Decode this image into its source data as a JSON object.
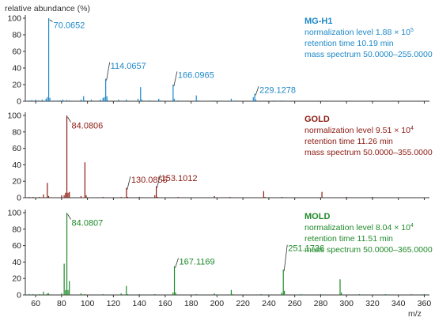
{
  "y_axis_title": "relative abundance (%)",
  "x_axis_unit": "m/z",
  "chart_data": [
    {
      "type": "bar",
      "name": "MG-H1",
      "color": "#1e88c8",
      "info": {
        "norm_prefix": "normalization level 1.88 × 10",
        "norm_exp": "5",
        "retention": "retention time 10.19 min",
        "mass_range": "mass spectrum 50.0000–255.0000"
      },
      "x_ticks": [
        60,
        80,
        100,
        120,
        140,
        160,
        180,
        200,
        220,
        240,
        260,
        280,
        300,
        320,
        340,
        360
      ],
      "y_ticks": [
        0,
        20,
        40,
        60,
        80,
        100
      ],
      "xlim": [
        52,
        364
      ],
      "ylim": [
        0,
        100
      ],
      "peaks": [
        {
          "x": 55.0,
          "y": 1
        },
        {
          "x": 57.0,
          "y": 1.5
        },
        {
          "x": 60.0,
          "y": 2
        },
        {
          "x": 62.0,
          "y": 1
        },
        {
          "x": 65.0,
          "y": 2
        },
        {
          "x": 68.0,
          "y": 3
        },
        {
          "x": 69.0,
          "y": 5
        },
        {
          "x": 70.0652,
          "y": 100
        },
        {
          "x": 71.0,
          "y": 4
        },
        {
          "x": 74.0,
          "y": 1
        },
        {
          "x": 77.0,
          "y": 1
        },
        {
          "x": 79.0,
          "y": 1
        },
        {
          "x": 81.0,
          "y": 2
        },
        {
          "x": 84.0,
          "y": 1.5
        },
        {
          "x": 86.0,
          "y": 1
        },
        {
          "x": 95.0,
          "y": 2
        },
        {
          "x": 97.0,
          "y": 6
        },
        {
          "x": 98.0,
          "y": 1
        },
        {
          "x": 103.0,
          "y": 2
        },
        {
          "x": 110.0,
          "y": 2
        },
        {
          "x": 112.0,
          "y": 4
        },
        {
          "x": 113.0,
          "y": 5
        },
        {
          "x": 114.0657,
          "y": 27
        },
        {
          "x": 115.0,
          "y": 6
        },
        {
          "x": 116.0,
          "y": 1
        },
        {
          "x": 124.0,
          "y": 2
        },
        {
          "x": 130.0,
          "y": 2
        },
        {
          "x": 139.0,
          "y": 3
        },
        {
          "x": 141.0,
          "y": 17
        },
        {
          "x": 142.0,
          "y": 2
        },
        {
          "x": 148.0,
          "y": 1
        },
        {
          "x": 155.0,
          "y": 3
        },
        {
          "x": 156.0,
          "y": 1
        },
        {
          "x": 166.0965,
          "y": 20
        },
        {
          "x": 167.0,
          "y": 3
        },
        {
          "x": 170.0,
          "y": 1
        },
        {
          "x": 184.0,
          "y": 7
        },
        {
          "x": 185.0,
          "y": 1
        },
        {
          "x": 198.0,
          "y": 1
        },
        {
          "x": 211.0,
          "y": 3
        },
        {
          "x": 215.0,
          "y": 1
        },
        {
          "x": 228.0,
          "y": 5
        },
        {
          "x": 229.1278,
          "y": 9
        },
        {
          "x": 230.0,
          "y": 2
        },
        {
          "x": 244.0,
          "y": 1
        },
        {
          "x": 250.0,
          "y": 1
        }
      ],
      "labels": [
        {
          "x": 70.0652,
          "text": "70.0652",
          "label_y": 92
        },
        {
          "x": 114.0657,
          "text": "114.0657",
          "label_y": 43
        },
        {
          "x": 166.0965,
          "text": "166.0965",
          "label_y": 32
        },
        {
          "x": 229.1278,
          "text": "229.1278",
          "label_y": 14
        }
      ]
    },
    {
      "type": "bar",
      "name": "GOLD",
      "color": "#8b1a12",
      "info": {
        "norm_prefix": "normalization level 9.51 × 10",
        "norm_exp": "4",
        "retention": "retention time 11.26 min",
        "mass_range": "mass spectrum 50.0000–355.0000"
      },
      "x_ticks": [
        60,
        80,
        100,
        120,
        140,
        160,
        180,
        200,
        220,
        240,
        260,
        280,
        300,
        320,
        340,
        360
      ],
      "y_ticks": [
        0,
        20,
        40,
        60,
        80,
        100
      ],
      "xlim": [
        52,
        364
      ],
      "ylim": [
        0,
        100
      ],
      "peaks": [
        {
          "x": 55.0,
          "y": 1
        },
        {
          "x": 58.0,
          "y": 1
        },
        {
          "x": 63.0,
          "y": 1
        },
        {
          "x": 66.0,
          "y": 4
        },
        {
          "x": 69.0,
          "y": 18
        },
        {
          "x": 70.0,
          "y": 2
        },
        {
          "x": 80.0,
          "y": 3
        },
        {
          "x": 82.0,
          "y": 3
        },
        {
          "x": 83.0,
          "y": 6
        },
        {
          "x": 84.0806,
          "y": 100
        },
        {
          "x": 85.0,
          "y": 6
        },
        {
          "x": 86.0,
          "y": 7
        },
        {
          "x": 95.0,
          "y": 2
        },
        {
          "x": 98.0,
          "y": 43
        },
        {
          "x": 99.0,
          "y": 3
        },
        {
          "x": 112.0,
          "y": 1
        },
        {
          "x": 126.0,
          "y": 1
        },
        {
          "x": 130.0855,
          "y": 12
        },
        {
          "x": 131.0,
          "y": 1
        },
        {
          "x": 140.0,
          "y": 1
        },
        {
          "x": 152.0,
          "y": 3
        },
        {
          "x": 153.1012,
          "y": 14
        },
        {
          "x": 154.0,
          "y": 1
        },
        {
          "x": 170.0,
          "y": 1
        },
        {
          "x": 198.0,
          "y": 2
        },
        {
          "x": 210.0,
          "y": 1
        },
        {
          "x": 236.0,
          "y": 8
        },
        {
          "x": 237.0,
          "y": 1
        },
        {
          "x": 250.0,
          "y": 1
        },
        {
          "x": 281.0,
          "y": 7
        },
        {
          "x": 300.0,
          "y": 1
        },
        {
          "x": 320.0,
          "y": 1
        }
      ],
      "labels": [
        {
          "x": 84.0806,
          "text": "84.0806",
          "label_y": 88
        },
        {
          "x": 130.0855,
          "text": "130.0855",
          "label_y": 22
        },
        {
          "x": 153.1012,
          "text": "153.1012",
          "label_y": 24
        }
      ]
    },
    {
      "type": "bar",
      "name": "MOLD",
      "color": "#1f8a2a",
      "info": {
        "norm_prefix": "normalization level 8.04 × 10",
        "norm_exp": "4",
        "retention": "retention time 11.51 min",
        "mass_range": "mass spectrum 50.0000–365.0000"
      },
      "x_ticks": [
        60,
        80,
        100,
        120,
        140,
        160,
        180,
        200,
        220,
        240,
        260,
        280,
        300,
        320,
        340,
        360
      ],
      "y_ticks": [
        0,
        20,
        40,
        60,
        80,
        100
      ],
      "xlim": [
        52,
        364
      ],
      "ylim": [
        0,
        100
      ],
      "peaks": [
        {
          "x": 55.0,
          "y": 1
        },
        {
          "x": 58.0,
          "y": 1
        },
        {
          "x": 63.0,
          "y": 1
        },
        {
          "x": 66.0,
          "y": 4
        },
        {
          "x": 69.0,
          "y": 2
        },
        {
          "x": 70.0,
          "y": 2
        },
        {
          "x": 80.0,
          "y": 2
        },
        {
          "x": 82.0,
          "y": 38
        },
        {
          "x": 83.0,
          "y": 6
        },
        {
          "x": 84.0807,
          "y": 100
        },
        {
          "x": 85.0,
          "y": 6
        },
        {
          "x": 86.0,
          "y": 17
        },
        {
          "x": 95.0,
          "y": 2
        },
        {
          "x": 98.0,
          "y": 1
        },
        {
          "x": 112.0,
          "y": 1
        },
        {
          "x": 126.0,
          "y": 2
        },
        {
          "x": 130.0,
          "y": 11
        },
        {
          "x": 131.0,
          "y": 1
        },
        {
          "x": 140.0,
          "y": 1
        },
        {
          "x": 152.0,
          "y": 1
        },
        {
          "x": 166.0,
          "y": 3
        },
        {
          "x": 167.1169,
          "y": 35
        },
        {
          "x": 168.0,
          "y": 3
        },
        {
          "x": 184.0,
          "y": 1
        },
        {
          "x": 198.0,
          "y": 2
        },
        {
          "x": 211.0,
          "y": 6
        },
        {
          "x": 212.0,
          "y": 1
        },
        {
          "x": 234.0,
          "y": 1
        },
        {
          "x": 250.0,
          "y": 3
        },
        {
          "x": 251.1736,
          "y": 31
        },
        {
          "x": 252.0,
          "y": 5
        },
        {
          "x": 265.0,
          "y": 1
        },
        {
          "x": 280.0,
          "y": 1
        },
        {
          "x": 295.0,
          "y": 19
        },
        {
          "x": 296.0,
          "y": 3
        },
        {
          "x": 310.0,
          "y": 1
        },
        {
          "x": 330.0,
          "y": 1
        },
        {
          "x": 350.0,
          "y": 1
        },
        {
          "x": 360.0,
          "y": 1
        }
      ],
      "labels": [
        {
          "x": 84.0807,
          "text": "84.0807",
          "label_y": 88
        },
        {
          "x": 167.1169,
          "text": "167.1169",
          "label_y": 41
        },
        {
          "x": 251.1736,
          "text": "251.1736",
          "label_y": 57
        }
      ]
    }
  ]
}
